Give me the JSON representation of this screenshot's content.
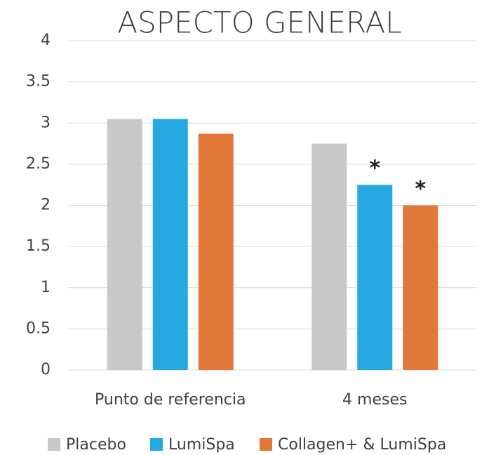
{
  "chart_data": {
    "type": "bar",
    "title": "ASPECTO GENERAL",
    "categories": [
      "Punto de referencia",
      "4 meses"
    ],
    "series": [
      {
        "name": "Placebo",
        "color": "#c8c8c8",
        "values": [
          3.05,
          2.75
        ],
        "annotations": [
          null,
          null
        ]
      },
      {
        "name": "LumiSpa",
        "color": "#26a9e0",
        "values": [
          3.05,
          2.25
        ],
        "annotations": [
          null,
          "*"
        ]
      },
      {
        "name": "Collagen+ & LumiSpa",
        "color": "#e2773a",
        "values": [
          2.87,
          2.0
        ],
        "annotations": [
          null,
          "*"
        ]
      }
    ],
    "ylim": [
      0,
      4
    ],
    "yticks": [
      0,
      0.5,
      1,
      1.5,
      2,
      2.5,
      3,
      3.5,
      4
    ],
    "grid": true,
    "legend": "bottom"
  }
}
